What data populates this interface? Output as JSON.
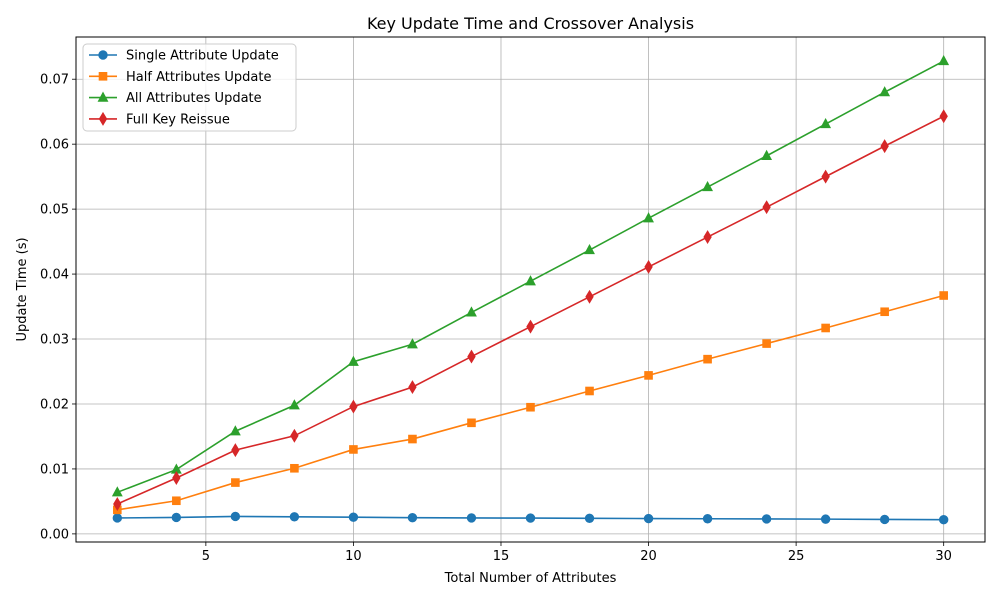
{
  "chart_data": {
    "type": "line",
    "title": "Key Update Time and Crossover Analysis",
    "xlabel": "Total Number of Attributes",
    "ylabel": "Update Time (s)",
    "x": [
      2,
      4,
      6,
      8,
      10,
      12,
      14,
      16,
      18,
      20,
      22,
      24,
      26,
      28,
      30
    ],
    "xlim": [
      0.6,
      31.4
    ],
    "ylim": [
      -0.00125,
      0.0765
    ],
    "xticks": [
      5,
      10,
      15,
      20,
      25,
      30
    ],
    "yticks": [
      0.0,
      0.01,
      0.02,
      0.03,
      0.04,
      0.05,
      0.06,
      0.07
    ],
    "ytick_labels": [
      "0.00",
      "0.01",
      "0.02",
      "0.03",
      "0.04",
      "0.05",
      "0.06",
      "0.07"
    ],
    "grid": true,
    "legend_position": "top-left",
    "series": [
      {
        "name": "Single Attribute Update",
        "color": "#1f77b4",
        "marker": "circle",
        "values": [
          0.00245,
          0.00253,
          0.00268,
          0.00263,
          0.00257,
          0.0025,
          0.00246,
          0.00243,
          0.0024,
          0.00236,
          0.00233,
          0.0023,
          0.00227,
          0.00222,
          0.00218
        ]
      },
      {
        "name": "Half Attributes Update",
        "color": "#ff7f0e",
        "marker": "square",
        "values": [
          0.0037,
          0.0051,
          0.0079,
          0.0101,
          0.013,
          0.0146,
          0.0171,
          0.0195,
          0.022,
          0.0244,
          0.0269,
          0.0293,
          0.0317,
          0.0342,
          0.0367
        ]
      },
      {
        "name": "All Attributes Update",
        "color": "#2ca02c",
        "marker": "triangle",
        "values": [
          0.0064,
          0.0099,
          0.0158,
          0.0198,
          0.0265,
          0.0292,
          0.0341,
          0.0389,
          0.0437,
          0.0486,
          0.0534,
          0.0582,
          0.0631,
          0.068,
          0.0728
        ]
      },
      {
        "name": "Full Key Reissue",
        "color": "#d62728",
        "marker": "diamond",
        "values": [
          0.0046,
          0.0086,
          0.0129,
          0.0151,
          0.0196,
          0.0226,
          0.0273,
          0.0319,
          0.0365,
          0.0411,
          0.0457,
          0.0503,
          0.055,
          0.0597,
          0.0643
        ]
      }
    ]
  }
}
